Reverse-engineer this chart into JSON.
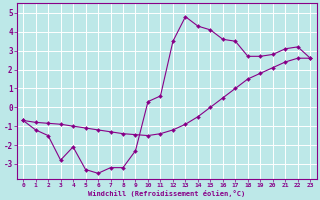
{
  "xlabel": "Windchill (Refroidissement éolien,°C)",
  "x_ticks": [
    0,
    1,
    2,
    3,
    4,
    5,
    6,
    7,
    8,
    9,
    10,
    11,
    12,
    13,
    14,
    15,
    16,
    17,
    18,
    19,
    20,
    21,
    22,
    23
  ],
  "y_ticks": [
    -3,
    -2,
    -1,
    0,
    1,
    2,
    3,
    4,
    5
  ],
  "xlim": [
    -0.5,
    23.5
  ],
  "ylim": [
    -3.8,
    5.5
  ],
  "background_color": "#bde8e8",
  "grid_color": "#ffffff",
  "line_color": "#880088",
  "line1_x": [
    0,
    1,
    2,
    3,
    4,
    5,
    6,
    7,
    8,
    9,
    10,
    11,
    12,
    13,
    14,
    15,
    16,
    17,
    18,
    19,
    20,
    21,
    22,
    23
  ],
  "line1_y": [
    -0.7,
    -1.2,
    -1.5,
    -2.8,
    -2.1,
    -3.3,
    -3.5,
    -3.2,
    -3.2,
    -2.3,
    0.3,
    0.6,
    3.5,
    4.8,
    4.3,
    4.1,
    3.6,
    3.5,
    2.7,
    2.7,
    2.8,
    3.1,
    3.2,
    2.6
  ],
  "line2_x": [
    0,
    1,
    2,
    3,
    4,
    5,
    6,
    7,
    8,
    9,
    10,
    11,
    12,
    13,
    14,
    15,
    16,
    17,
    18,
    19,
    20,
    21,
    22,
    23
  ],
  "line2_y": [
    -0.7,
    -0.8,
    -0.85,
    -0.9,
    -1.0,
    -1.1,
    -1.2,
    -1.3,
    -1.4,
    -1.45,
    -1.5,
    -1.4,
    -1.2,
    -0.9,
    -0.5,
    0.0,
    0.5,
    1.0,
    1.5,
    1.8,
    2.1,
    2.4,
    2.6,
    2.6
  ]
}
